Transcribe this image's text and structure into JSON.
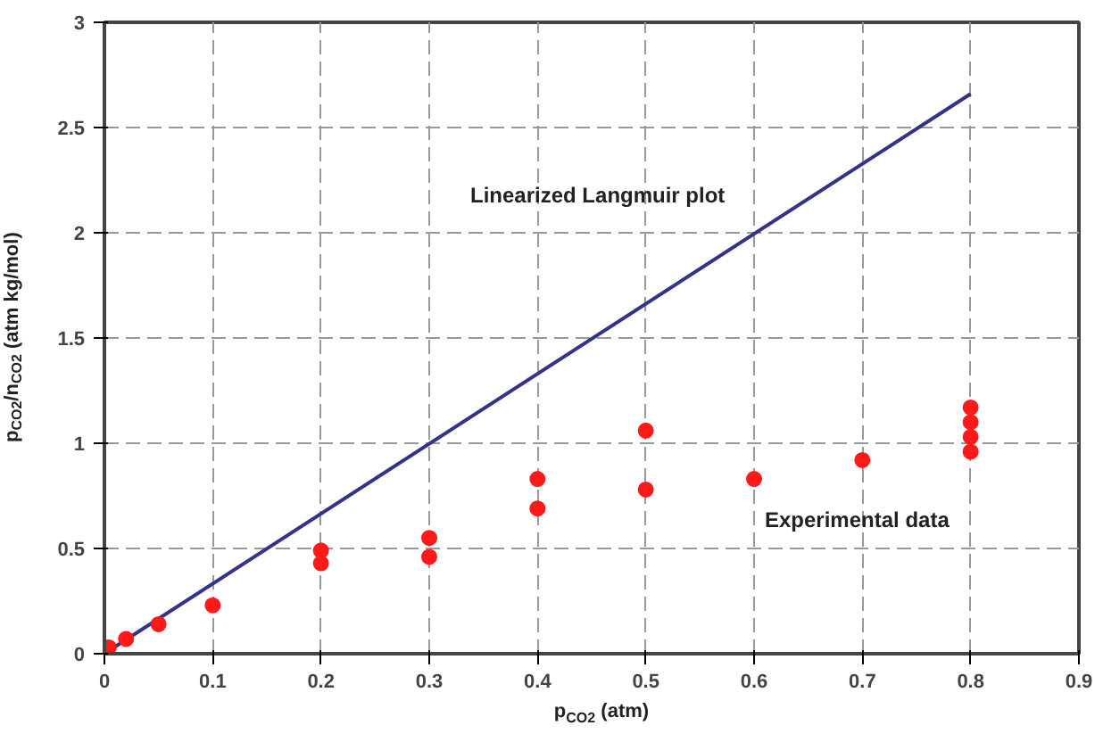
{
  "chart_data": {
    "type": "scatter",
    "xlabel": "p$_{CO2}$ (atm)",
    "ylabel": "p$_{CO2}$/n$_{CO2}$ (atm kg/mol)",
    "xlim": [
      0,
      0.9
    ],
    "ylim": [
      0,
      3
    ],
    "xticks": [
      0,
      0.1,
      0.2,
      0.3,
      0.4,
      0.5,
      0.6,
      0.7,
      0.8,
      0.9
    ],
    "yticks": [
      0,
      0.5,
      1,
      1.5,
      2,
      2.5,
      3
    ],
    "grid": true,
    "series": [
      {
        "type": "line",
        "color": "#333388",
        "x": [
          0,
          0.8
        ],
        "values": [
          0,
          2.66
        ]
      },
      {
        "marker": "circle",
        "color": "#ff1a1a",
        "x": [
          0.004,
          0.02,
          0.05,
          0.1,
          0.2,
          0.2,
          0.3,
          0.3,
          0.4,
          0.4,
          0.5,
          0.5,
          0.6,
          0.7,
          0.8,
          0.8,
          0.8,
          0.8
        ],
        "values": [
          0.03,
          0.07,
          0.14,
          0.23,
          0.49,
          0.43,
          0.55,
          0.46,
          0.83,
          0.69,
          1.06,
          0.78,
          0.83,
          0.92,
          1.17,
          1.1,
          1.03,
          0.96
        ]
      }
    ],
    "annotations": [
      "Linearized Langmuir plot",
      "Experimental data"
    ]
  }
}
